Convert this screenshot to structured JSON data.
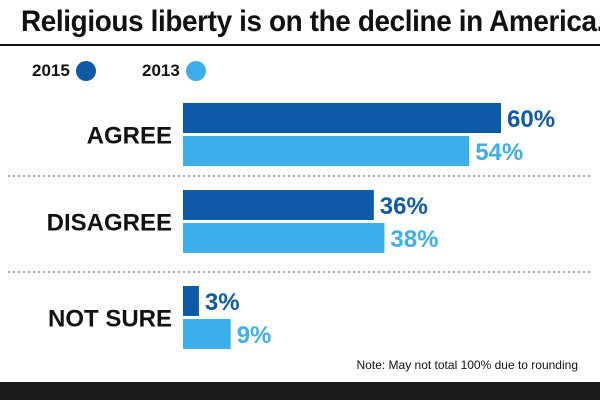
{
  "title": "Religious liberty is on the decline in America.",
  "note": "Note: May not total 100% due to rounding",
  "colors": {
    "series_2015": "#0e5aa7",
    "series_2013": "#3daee9",
    "text": "#111111",
    "footer": "#1a1a1a"
  },
  "chart_data": {
    "type": "bar",
    "orientation": "horizontal",
    "categories": [
      "AGREE",
      "DISAGREE",
      "NOT SURE"
    ],
    "series": [
      {
        "name": "2015",
        "values": [
          60,
          36,
          3
        ],
        "labels": [
          "60%",
          "36%",
          "3%"
        ],
        "color": "#0e5aa7"
      },
      {
        "name": "2013",
        "values": [
          54,
          38,
          9
        ],
        "labels": [
          "54%",
          "38%",
          "9%"
        ],
        "color": "#3daee9"
      }
    ],
    "unit": "%",
    "xlim": [
      0,
      60
    ],
    "grid": false,
    "legend": "top-left"
  }
}
